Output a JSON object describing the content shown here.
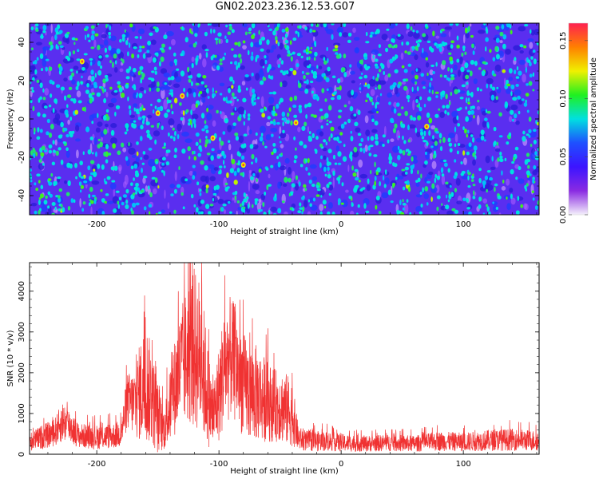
{
  "title": "GN02.2023.236.12.53.G07",
  "colors": {
    "snr_line": "#f03232",
    "frame": "#000000",
    "colormap": [
      "#f4f0fb",
      "#8a2be2",
      "#3c14ff",
      "#1e50ff",
      "#00e0e0",
      "#20f020",
      "#f0f000",
      "#ff8000",
      "#ff2050"
    ]
  },
  "chart_data": [
    {
      "type": "heatmap",
      "xlabel": "Height of straight line (km)",
      "ylabel": "Frequency (Hz)",
      "xlim": [
        -255,
        162
      ],
      "ylim": [
        -50,
        50
      ],
      "x_ticks": [
        "-200",
        "-100",
        "0",
        "100"
      ],
      "x_tick_values": [
        -200,
        -100,
        0,
        100
      ],
      "y_ticks": [
        "-40",
        "-20",
        "0",
        "20",
        "40"
      ],
      "y_tick_values": [
        -40,
        -20,
        0,
        20,
        40
      ],
      "colorbar": {
        "label": "Normalized spectral amplitude",
        "range": [
          0.0,
          0.165
        ],
        "ticks": [
          "0.00",
          "0.05",
          "0.10",
          "0.15"
        ],
        "tick_values": [
          0.0,
          0.05,
          0.1,
          0.15
        ]
      },
      "description_values": {
        "background_level": 0.01,
        "typical_blob_level": 0.05,
        "peak_level": 0.16
      }
    },
    {
      "type": "line",
      "xlabel": "Height of straight line (km)",
      "ylabel": "SNR (10 * v/v)",
      "xlim": [
        -255,
        162
      ],
      "ylim": [
        0,
        4700
      ],
      "x_ticks": [
        "-200",
        "-100",
        "0",
        "100"
      ],
      "x_tick_values": [
        -200,
        -100,
        0,
        100
      ],
      "y_ticks": [
        "0",
        "1000",
        "2000",
        "3000",
        "4000"
      ],
      "y_tick_values": [
        0,
        1000,
        2000,
        3000,
        4000
      ],
      "envelope": {
        "x": [
          -255,
          -245,
          -235,
          -228,
          -222,
          -215,
          -200,
          -185,
          -180,
          -175,
          -170,
          -165,
          -160,
          -155,
          -150,
          -145,
          -140,
          -135,
          -130,
          -125,
          -120,
          -115,
          -110,
          -105,
          -100,
          -95,
          -90,
          -85,
          -80,
          -75,
          -70,
          -65,
          -60,
          -55,
          -50,
          -45,
          -40,
          -35,
          -30,
          -20,
          -10,
          0,
          20,
          40,
          60,
          80,
          100,
          120,
          140,
          162
        ],
        "mean": [
          300,
          420,
          520,
          800,
          700,
          460,
          420,
          460,
          520,
          1300,
          1250,
          1500,
          1800,
          1400,
          900,
          600,
          1200,
          1800,
          2200,
          2500,
          2600,
          2400,
          1600,
          900,
          1500,
          2200,
          2400,
          2100,
          1700,
          1500,
          1500,
          1400,
          1300,
          1200,
          1200,
          1100,
          1000,
          400,
          330,
          320,
          320,
          280,
          260,
          280,
          260,
          320,
          300,
          340,
          360,
          330
        ],
        "spread": [
          220,
          300,
          330,
          500,
          420,
          300,
          300,
          320,
          350,
          700,
          800,
          1200,
          1500,
          1200,
          900,
          500,
          900,
          1300,
          1500,
          1800,
          2000,
          1900,
          1400,
          800,
          1200,
          1500,
          1500,
          1400,
          1300,
          1200,
          1200,
          1100,
          1000,
          900,
          900,
          900,
          800,
          300,
          250,
          250,
          240,
          220,
          200,
          210,
          200,
          240,
          230,
          260,
          270,
          250
        ]
      }
    }
  ]
}
